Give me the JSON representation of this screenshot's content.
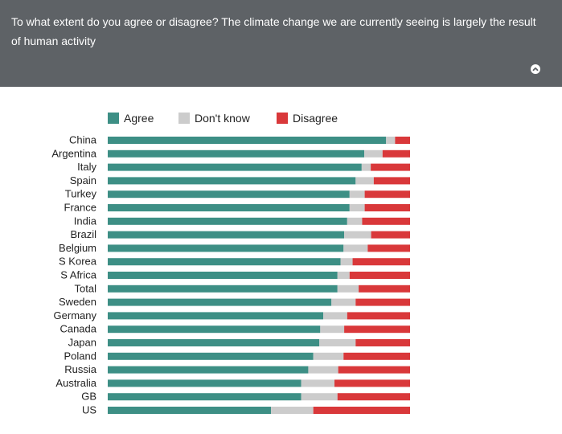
{
  "header": {
    "question": "To what extent do you agree or disagree? The climate change we are currently seeing is largely the result of human activity",
    "collapse_icon": "chevron-up-icon"
  },
  "colors": {
    "agree": "#3d8f85",
    "dont_know": "#cccccc",
    "disagree": "#d9383a",
    "header_bg": "#5e6266"
  },
  "chart_data": {
    "type": "bar",
    "orientation": "horizontal",
    "stacked": true,
    "percent": true,
    "grid": false,
    "legend": "top",
    "title": "",
    "xlabel": "",
    "ylabel": "",
    "xlim": [
      0,
      100
    ],
    "categories": [
      "China",
      "Argentina",
      "Italy",
      "Spain",
      "Turkey",
      "France",
      "India",
      "Brazil",
      "Belgium",
      "S Korea",
      "S Africa",
      "Total",
      "Sweden",
      "Germany",
      "Canada",
      "Japan",
      "Poland",
      "Russia",
      "Australia",
      "GB",
      "US"
    ],
    "series": [
      {
        "name": "Agree",
        "values": [
          93,
          84,
          84,
          82,
          80,
          80,
          80,
          79,
          78,
          77,
          76,
          76,
          74,
          72,
          71,
          70,
          68,
          67,
          64,
          64,
          54
        ]
      },
      {
        "name": "Don't know",
        "values": [
          3,
          6,
          3,
          6,
          5,
          5,
          5,
          9,
          8,
          4,
          4,
          7,
          8,
          8,
          8,
          12,
          10,
          10,
          11,
          12,
          14
        ]
      },
      {
        "name": "Disagree",
        "values": [
          5,
          9,
          13,
          12,
          15,
          15,
          16,
          13,
          14,
          19,
          20,
          17,
          18,
          21,
          22,
          18,
          22,
          24,
          25,
          24,
          32
        ]
      }
    ]
  }
}
